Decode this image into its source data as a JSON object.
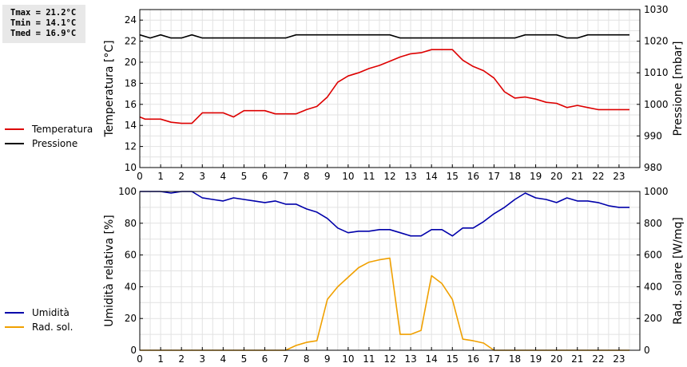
{
  "stats": {
    "tmax": "Tmax = 21.2°C",
    "tmin": "Tmin = 14.1°C",
    "tmed": "Tmed = 16.9°C"
  },
  "legend_top": [
    {
      "label": "Temperatura",
      "color": "#dd0000"
    },
    {
      "label": "Pressione",
      "color": "#000000"
    }
  ],
  "legend_bottom": [
    {
      "label": "Umidità",
      "color": "#0000aa"
    },
    {
      "label": "Rad. sol.",
      "color": "#f0a000"
    }
  ],
  "chart_data": [
    {
      "type": "line",
      "xlim": [
        0,
        24
      ],
      "x_ticks": [
        "0",
        "1",
        "2",
        "3",
        "4",
        "5",
        "6",
        "7",
        "8",
        "9",
        "10",
        "11",
        "12",
        "13",
        "14",
        "15",
        "16",
        "17",
        "18",
        "19",
        "20",
        "21",
        "22",
        "23"
      ],
      "ylabel": "Temperatura [°C]",
      "ylim": [
        10,
        25
      ],
      "y_ticks": [
        "10",
        "12",
        "14",
        "16",
        "18",
        "20",
        "22",
        "24"
      ],
      "y2label": "Pressione [mbar]",
      "y2lim": [
        980,
        1030
      ],
      "y2_ticks": [
        "980",
        "990",
        "1000",
        "1010",
        "1020",
        "1030"
      ],
      "grid": true,
      "series": [
        {
          "name": "Temperatura",
          "axis": "left",
          "color": "#dd0000",
          "x": [
            0,
            0.25,
            0.5,
            1,
            1.5,
            2,
            2.5,
            3,
            3.5,
            4,
            4.5,
            5,
            5.5,
            6,
            6.5,
            7,
            7.5,
            8,
            8.5,
            9,
            9.5,
            10,
            10.5,
            11,
            11.5,
            12,
            12.5,
            13,
            13.5,
            14,
            14.5,
            15,
            15.5,
            16,
            16.5,
            17,
            17.5,
            18,
            18.5,
            19,
            19.5,
            20,
            20.5,
            21,
            21.5,
            22,
            22.5,
            23,
            23.5
          ],
          "y": [
            14.8,
            14.6,
            14.6,
            14.6,
            14.3,
            14.2,
            14.2,
            15.2,
            15.2,
            15.2,
            14.8,
            15.4,
            15.4,
            15.4,
            15.1,
            15.1,
            15.1,
            15.5,
            15.8,
            16.7,
            18.1,
            18.7,
            19.0,
            19.4,
            19.7,
            20.1,
            20.5,
            20.8,
            20.9,
            21.2,
            21.2,
            21.2,
            20.2,
            19.6,
            19.2,
            18.5,
            17.2,
            16.6,
            16.7,
            16.5,
            16.2,
            16.1,
            15.7,
            15.9,
            15.7,
            15.5,
            15.5,
            15.5,
            15.5
          ]
        },
        {
          "name": "Pressione",
          "axis": "right",
          "color": "#000000",
          "x": [
            0,
            0.5,
            1,
            1.5,
            2,
            2.5,
            3,
            3.5,
            4,
            4.5,
            5,
            5.5,
            6,
            6.5,
            7,
            7.5,
            8,
            8.5,
            9,
            9.5,
            10,
            10.5,
            11,
            11.5,
            12,
            12.5,
            13,
            13.5,
            14,
            14.5,
            15,
            15.5,
            16,
            16.5,
            17,
            17.5,
            18,
            18.5,
            19,
            19.5,
            20,
            20.5,
            21,
            21.5,
            22,
            22.5,
            23,
            23.5
          ],
          "y": [
            1022,
            1021,
            1022,
            1021,
            1021,
            1022,
            1021,
            1021,
            1021,
            1021,
            1021,
            1021,
            1021,
            1021,
            1021,
            1022,
            1022,
            1022,
            1022,
            1022,
            1022,
            1022,
            1022,
            1022,
            1022,
            1021,
            1021,
            1021,
            1021,
            1021,
            1021,
            1021,
            1021,
            1021,
            1021,
            1021,
            1021,
            1022,
            1022,
            1022,
            1022,
            1021,
            1021,
            1022,
            1022,
            1022,
            1022,
            1022
          ]
        }
      ]
    },
    {
      "type": "line",
      "xlim": [
        0,
        24
      ],
      "x_ticks": [
        "0",
        "1",
        "2",
        "3",
        "4",
        "5",
        "6",
        "7",
        "8",
        "9",
        "10",
        "11",
        "12",
        "13",
        "14",
        "15",
        "16",
        "17",
        "18",
        "19",
        "20",
        "21",
        "22",
        "23"
      ],
      "ylabel": "Umidità relativa [%]",
      "ylim": [
        0,
        100
      ],
      "y_ticks": [
        "0",
        "20",
        "40",
        "60",
        "80",
        "100"
      ],
      "y2label": "Rad. solare [W/mq]",
      "y2lim": [
        0,
        1000
      ],
      "y2_ticks": [
        "0",
        "200",
        "400",
        "600",
        "800",
        "1000"
      ],
      "grid": true,
      "series": [
        {
          "name": "Umidità",
          "axis": "left",
          "color": "#0000aa",
          "x": [
            0,
            0.5,
            1,
            1.5,
            2,
            2.5,
            3,
            3.5,
            4,
            4.5,
            5,
            5.5,
            6,
            6.5,
            7,
            7.5,
            8,
            8.5,
            9,
            9.5,
            10,
            10.5,
            11,
            11.5,
            12,
            12.5,
            13,
            13.5,
            14,
            14.5,
            15,
            15.5,
            16,
            16.5,
            17,
            17.5,
            18,
            18.5,
            19,
            19.5,
            20,
            20.5,
            21,
            21.5,
            22,
            22.5,
            23,
            23.5
          ],
          "y": [
            100,
            100,
            100,
            99,
            100,
            100,
            96,
            95,
            94,
            96,
            95,
            94,
            93,
            94,
            92,
            92,
            89,
            87,
            83,
            77,
            74,
            75,
            75,
            76,
            76,
            74,
            72,
            72,
            76,
            76,
            72,
            77,
            77,
            81,
            86,
            90,
            95,
            99,
            96,
            95,
            93,
            96,
            94,
            94,
            93,
            91,
            90,
            90
          ]
        },
        {
          "name": "Rad. sol.",
          "axis": "right",
          "color": "#f0a000",
          "x": [
            0,
            1,
            2,
            3,
            4,
            5,
            6,
            7,
            7.5,
            8,
            8.5,
            9,
            9.5,
            10,
            10.5,
            11,
            11.5,
            12,
            12.5,
            13,
            13.5,
            14,
            14.5,
            15,
            15.5,
            16,
            16.5,
            17,
            18,
            19,
            20,
            21,
            22,
            23,
            23.5
          ],
          "y": [
            0,
            0,
            0,
            0,
            0,
            0,
            0,
            0,
            30,
            50,
            60,
            320,
            400,
            460,
            520,
            555,
            570,
            580,
            100,
            100,
            125,
            470,
            420,
            320,
            70,
            60,
            45,
            0,
            0,
            0,
            0,
            0,
            0,
            0,
            0
          ]
        }
      ]
    }
  ]
}
